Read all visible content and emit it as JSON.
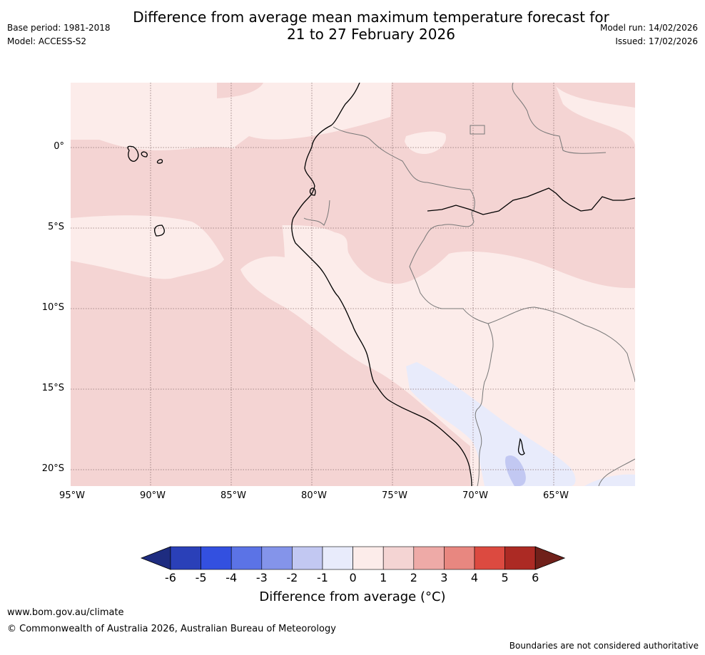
{
  "title": {
    "line1": "Difference from average mean maximum temperature forecast for",
    "line2": "21 to 27 February 2026"
  },
  "meta": {
    "base_period": "Base period: 1981-2018",
    "model": "Model: ACCESS-S2",
    "model_run": "Model run: 14/02/2026",
    "issued": "Issued: 17/02/2026"
  },
  "map": {
    "longitude_ticks": [
      "95°W",
      "90°W",
      "85°W",
      "80°W",
      "75°W",
      "70°W",
      "65°W"
    ],
    "latitude_ticks": [
      "0°",
      "5°S",
      "10°S",
      "15°S",
      "20°S"
    ]
  },
  "colorbar": {
    "title": "Difference from average (°C)",
    "labels": [
      "-6",
      "-5",
      "-4",
      "-3",
      "-2",
      "-1",
      "0",
      "1",
      "2",
      "3",
      "4",
      "5",
      "6"
    ],
    "colors": [
      "#1e2c80",
      "#2a40b8",
      "#3350e0",
      "#5b73e6",
      "#8494ea",
      "#c2c8f2",
      "#e8ebfb",
      "#fcecea",
      "#f4d4d3",
      "#eeaaa7",
      "#e88780",
      "#dc4a40",
      "#ac2a24",
      "#70201a"
    ]
  },
  "footer": {
    "website": "www.bom.gov.au/climate",
    "copyright": "© Commonwealth of Australia 2026, Australian Bureau of Meteorology",
    "disclaimer": "Boundaries are not considered authoritative"
  }
}
